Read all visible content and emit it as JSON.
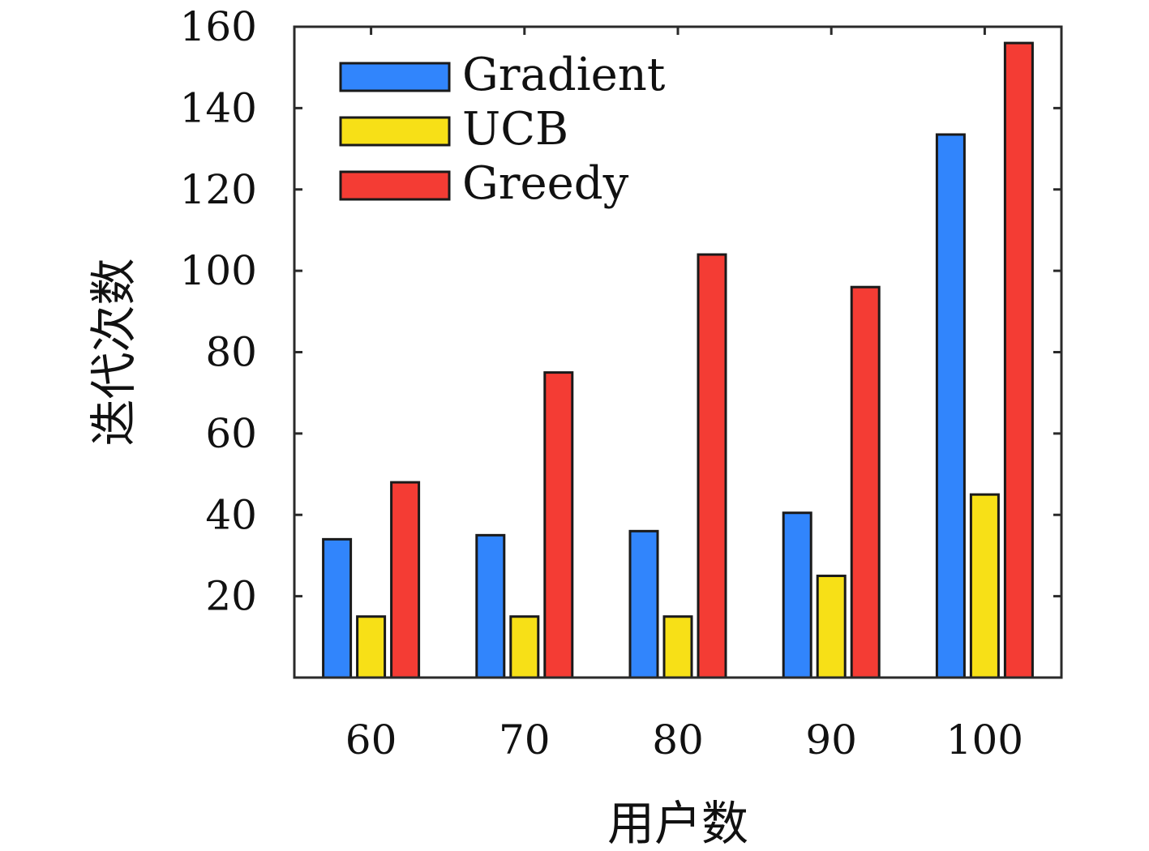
{
  "chart_data": {
    "type": "bar",
    "title": "",
    "xlabel": "用户数",
    "ylabel": "迭代次数",
    "categories": [
      "60",
      "70",
      "80",
      "90",
      "100"
    ],
    "ylim": [
      0,
      160
    ],
    "yticks": [
      20,
      40,
      60,
      80,
      100,
      120,
      140,
      160
    ],
    "ytick_labels": [
      "20",
      "40",
      "60",
      "80",
      "100",
      "120",
      "140",
      "160"
    ],
    "grid": false,
    "legend_position": "top-left",
    "series": [
      {
        "name": "Gradient",
        "color": "#3185fc",
        "values": [
          34,
          35,
          36,
          40.5,
          133.5
        ]
      },
      {
        "name": "UCB",
        "color": "#f7e017",
        "values": [
          15,
          15,
          15,
          25,
          45
        ]
      },
      {
        "name": "Greedy",
        "color": "#f43c34",
        "values": [
          48,
          75,
          104,
          96,
          156
        ]
      }
    ]
  }
}
